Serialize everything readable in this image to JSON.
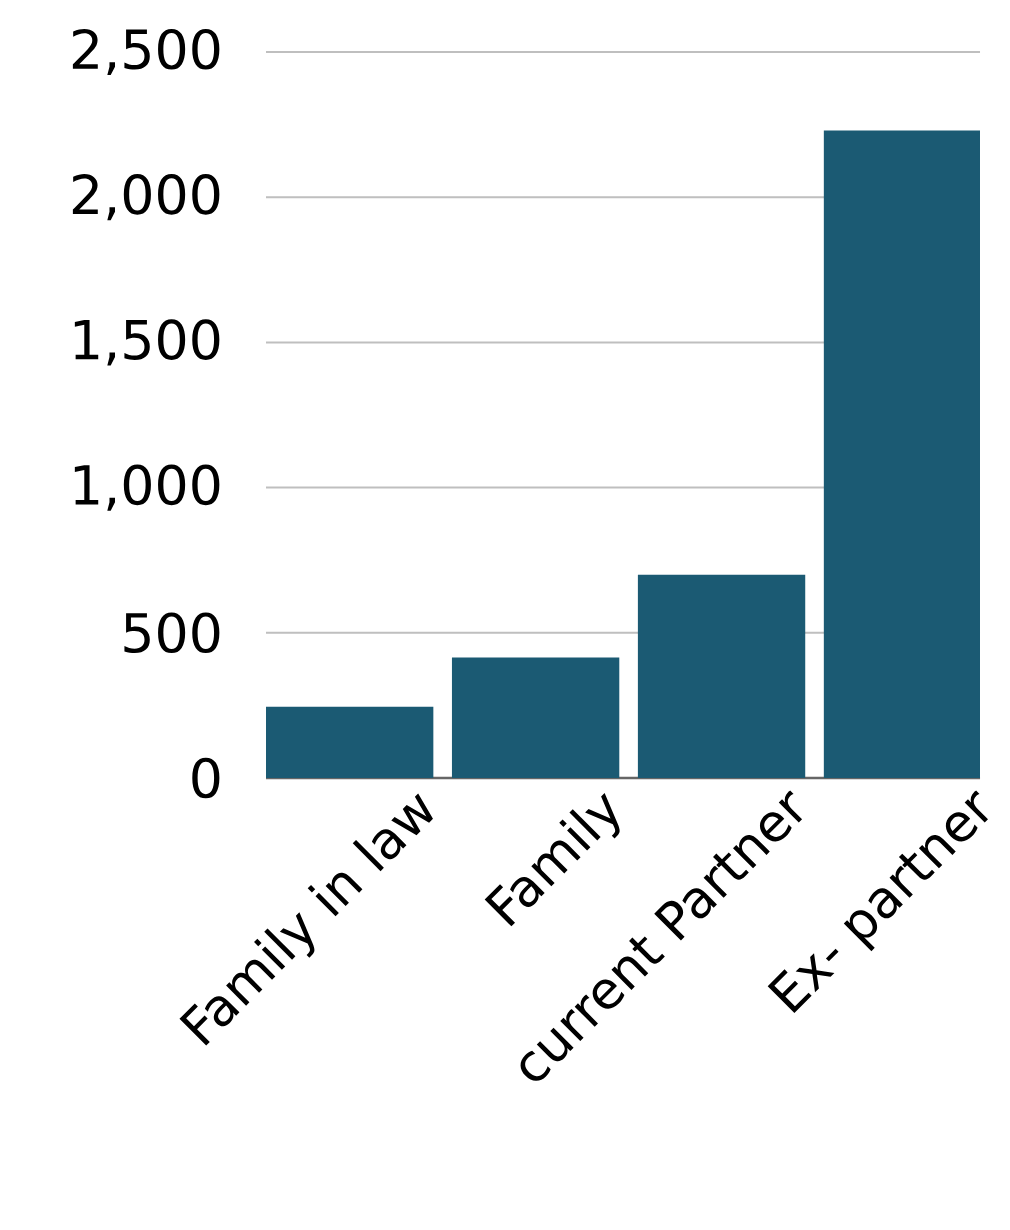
{
  "chart_data": {
    "type": "bar",
    "categories": [
      "Family in law",
      "Family",
      "current Partner",
      "Ex- partner"
    ],
    "values": [
      245,
      415,
      700,
      2230
    ],
    "color": "#1b5a73",
    "ylim": [
      0,
      2500
    ],
    "yticks": [
      {
        "value": 0,
        "label": "0"
      },
      {
        "value": 500,
        "label": "500"
      },
      {
        "value": 1000,
        "label": "1,000"
      },
      {
        "value": 1500,
        "label": "1,500"
      },
      {
        "value": 2000,
        "label": "2,000"
      },
      {
        "value": 2500,
        "label": "2,500"
      }
    ],
    "grid": "y"
  }
}
